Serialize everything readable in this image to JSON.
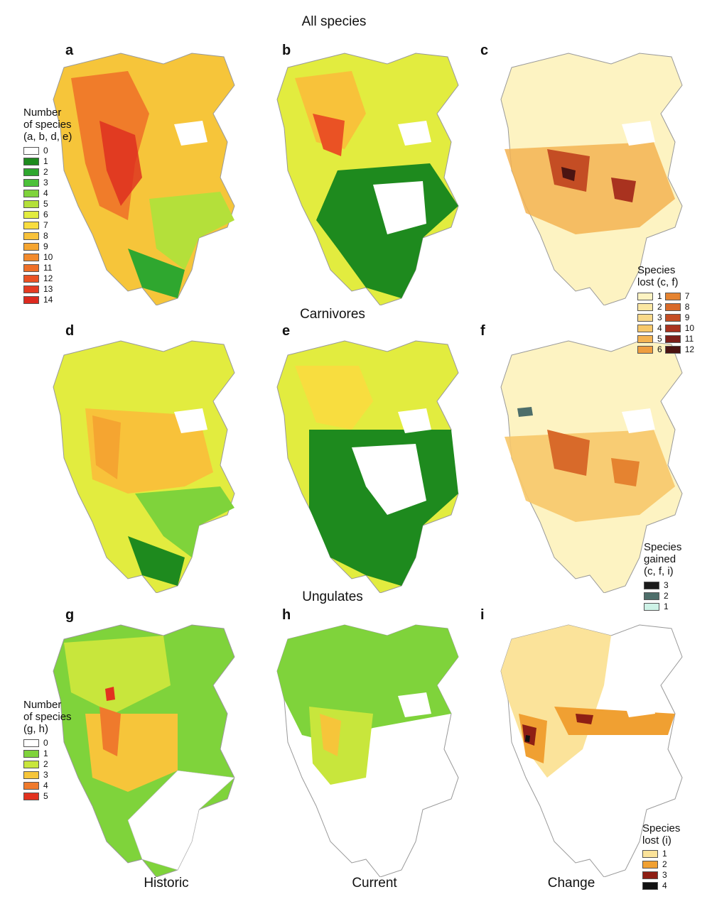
{
  "row_titles": [
    "All species",
    "Carnivores",
    "Ungulates"
  ],
  "column_labels": [
    "Historic",
    "Current",
    "Change"
  ],
  "panels": [
    "a",
    "b",
    "c",
    "d",
    "e",
    "f",
    "g",
    "h",
    "i"
  ],
  "legend_top": {
    "title_lines": [
      "Number",
      "of species",
      "(a, b, d, e)"
    ],
    "items": [
      {
        "label": "0",
        "color": "#ffffff"
      },
      {
        "label": "1",
        "color": "#1e8a1e"
      },
      {
        "label": "2",
        "color": "#2fa72f"
      },
      {
        "label": "3",
        "color": "#4cc13a"
      },
      {
        "label": "4",
        "color": "#7fd33b"
      },
      {
        "label": "5",
        "color": "#b4e03a"
      },
      {
        "label": "6",
        "color": "#e2ec3f"
      },
      {
        "label": "7",
        "color": "#f8dd3f"
      },
      {
        "label": "8",
        "color": "#f8c23a"
      },
      {
        "label": "9",
        "color": "#f5a531"
      },
      {
        "label": "10",
        "color": "#f28a2c"
      },
      {
        "label": "11",
        "color": "#ee6f28"
      },
      {
        "label": "12",
        "color": "#ea5224"
      },
      {
        "label": "13",
        "color": "#e43b22"
      },
      {
        "label": "14",
        "color": "#dd2a1f"
      }
    ]
  },
  "legend_lost_cf": {
    "title_lines": [
      "Species",
      "lost (c, f)"
    ],
    "left": [
      {
        "label": "1",
        "color": "#fdf3c2"
      },
      {
        "label": "2",
        "color": "#fbe7a3"
      },
      {
        "label": "3",
        "color": "#f9d98a"
      },
      {
        "label": "4",
        "color": "#f7c86a"
      },
      {
        "label": "5",
        "color": "#f3b352"
      },
      {
        "label": "6",
        "color": "#ee9d3f"
      }
    ],
    "right": [
      {
        "label": "7",
        "color": "#e58330"
      },
      {
        "label": "8",
        "color": "#d86a2a"
      },
      {
        "label": "9",
        "color": "#c44d24"
      },
      {
        "label": "10",
        "color": "#a9321f"
      },
      {
        "label": "11",
        "color": "#7d1f1a"
      },
      {
        "label": "12",
        "color": "#4b1412"
      }
    ]
  },
  "legend_gained": {
    "title_lines": [
      "Species",
      "gained",
      "(c, f, i)"
    ],
    "items": [
      {
        "label": "3",
        "color": "#1a1a1a"
      },
      {
        "label": "2",
        "color": "#4e6e6a"
      },
      {
        "label": "1",
        "color": "#cdf2e6"
      }
    ]
  },
  "legend_ungulates": {
    "title_lines": [
      "Number",
      "of species",
      "(g, h)"
    ],
    "items": [
      {
        "label": "0",
        "color": "#ffffff"
      },
      {
        "label": "1",
        "color": "#7fd33b"
      },
      {
        "label": "2",
        "color": "#c8e63c"
      },
      {
        "label": "3",
        "color": "#f6c53a"
      },
      {
        "label": "4",
        "color": "#ef7a2c"
      },
      {
        "label": "5",
        "color": "#e2321f"
      }
    ]
  },
  "legend_lost_i": {
    "title_lines": [
      "Species",
      "lost (i)"
    ],
    "items": [
      {
        "label": "1",
        "color": "#fbe39a"
      },
      {
        "label": "2",
        "color": "#f0a032"
      },
      {
        "label": "3",
        "color": "#8e1f14"
      },
      {
        "label": "4",
        "color": "#111111"
      }
    ]
  }
}
